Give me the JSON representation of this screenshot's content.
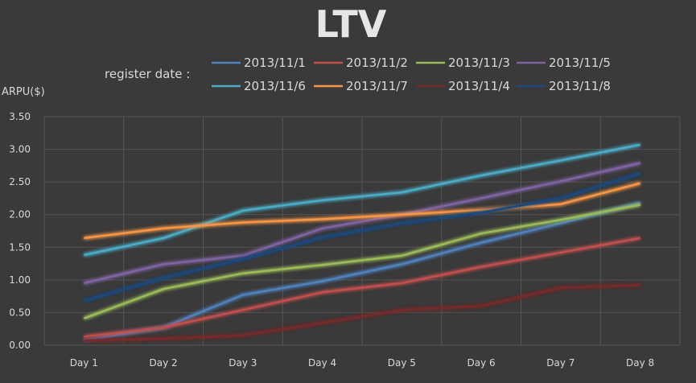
{
  "chart_data": {
    "type": "line",
    "title": "LTV",
    "xlabel": "",
    "ylabel": "ARPU($)",
    "legend_title": "register date :",
    "legend_position": "top",
    "grid": true,
    "categories": [
      "Day 1",
      "Day 2",
      "Day 3",
      "Day 4",
      "Day 5",
      "Day 6",
      "Day 7",
      "Day 8"
    ],
    "ylim": [
      0,
      3.5
    ],
    "yticks": [
      "0.00",
      "0.50",
      "1.00",
      "1.50",
      "2.00",
      "2.50",
      "3.00",
      "3.50"
    ],
    "series": [
      {
        "name": "2013/11/1",
        "color": "#4f81bd",
        "values": [
          0.08,
          0.27,
          0.77,
          0.98,
          1.24,
          1.57,
          1.87,
          2.18
        ]
      },
      {
        "name": "2013/11/2",
        "color": "#c0504d",
        "values": [
          0.13,
          0.27,
          0.54,
          0.81,
          0.95,
          1.2,
          1.42,
          1.64
        ]
      },
      {
        "name": "2013/11/3",
        "color": "#9bbb59",
        "values": [
          0.41,
          0.86,
          1.1,
          1.23,
          1.37,
          1.71,
          1.92,
          2.15
        ]
      },
      {
        "name": "2013/11/5",
        "color": "#8064a2",
        "values": [
          0.95,
          1.24,
          1.37,
          1.79,
          2.0,
          2.25,
          2.51,
          2.79
        ]
      },
      {
        "name": "2013/11/6",
        "color": "#4bacc6",
        "values": [
          1.38,
          1.64,
          2.06,
          2.22,
          2.34,
          2.6,
          2.83,
          3.07
        ]
      },
      {
        "name": "2013/11/7",
        "color": "#f79646",
        "values": [
          1.64,
          1.79,
          1.88,
          1.93,
          2.0,
          2.07,
          2.16,
          2.48
        ]
      },
      {
        "name": "2013/11/4",
        "color": "#772c2a",
        "values": [
          0.07,
          0.1,
          0.15,
          0.34,
          0.54,
          0.6,
          0.88,
          0.92
        ]
      },
      {
        "name": "2013/11/8",
        "color": "#1f497d",
        "values": [
          0.68,
          1.03,
          1.32,
          1.65,
          1.87,
          2.03,
          2.25,
          2.63
        ]
      }
    ]
  }
}
